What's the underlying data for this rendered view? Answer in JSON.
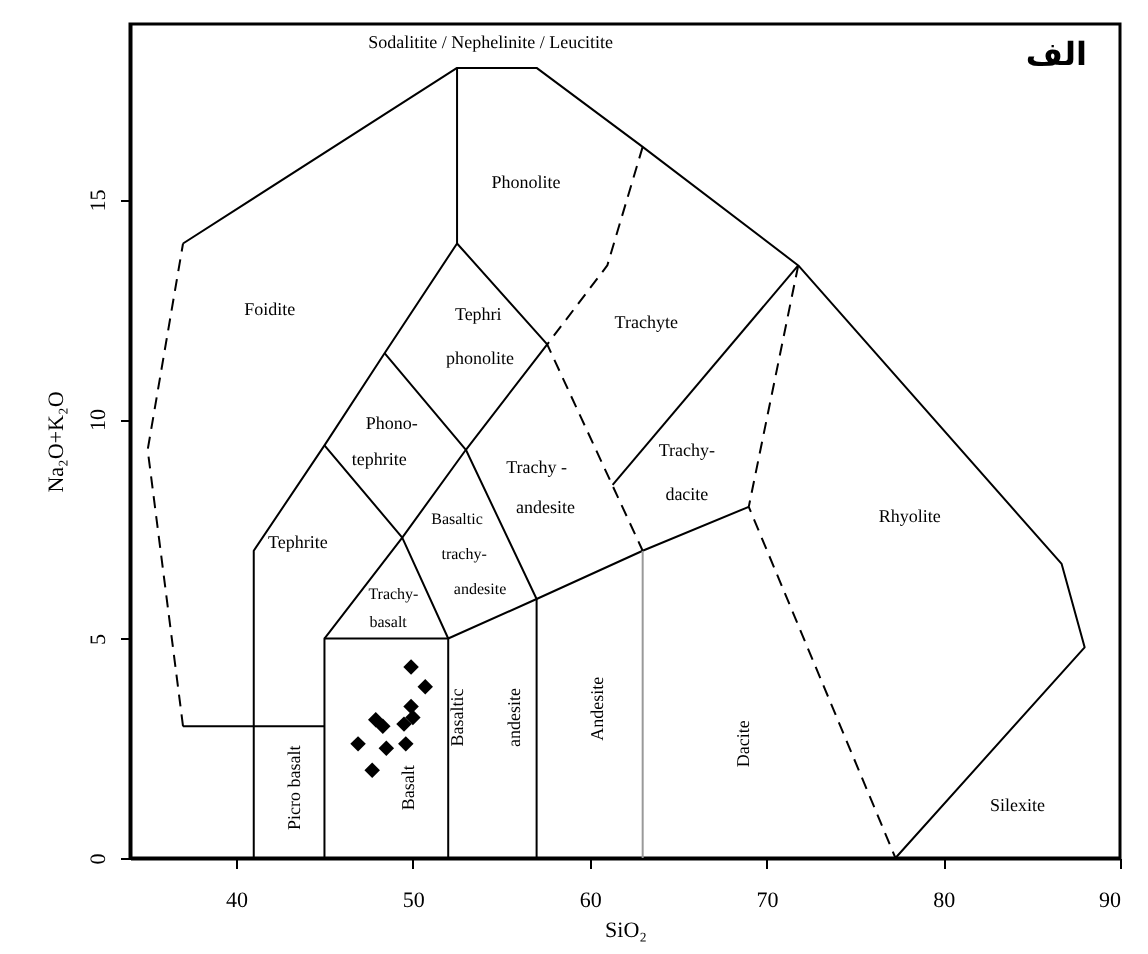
{
  "chart_data": {
    "type": "scatter",
    "xlabel": "SiO₂",
    "ylabel": "Na₂O+K₂O",
    "xlim": [
      34,
      90
    ],
    "ylim": [
      0,
      19
    ],
    "xticks": [
      40,
      50,
      60,
      70,
      80,
      90
    ],
    "yticks": [
      0,
      5,
      10,
      15
    ],
    "grid": false,
    "series": [
      {
        "color": "#000000",
        "marker": "diamond",
        "x": [
          49.9,
          50.7,
          49.9,
          50.0,
          47.9,
          48.3,
          49.5,
          49.6,
          48.5,
          46.9,
          47.7
        ],
        "values": [
          4.35,
          3.9,
          3.45,
          3.2,
          3.15,
          3.0,
          3.05,
          2.6,
          2.5,
          2.6,
          2.0
        ]
      },
      {
        "type": "line",
        "color": "#000000",
        "line_style": "solid",
        "x": [
          37,
          52.5,
          57,
          63,
          71.8,
          86.7,
          88,
          77.3
        ],
        "values": [
          14,
          18,
          18,
          16.2,
          13.5,
          6.7,
          4.8,
          0
        ]
      },
      {
        "type": "line",
        "color": "#000000",
        "line_style": "solid",
        "x": [
          37,
          45
        ],
        "values": [
          3,
          3
        ]
      },
      {
        "type": "line",
        "color": "#000000",
        "line_style": "solid",
        "x": [
          41,
          41,
          45,
          48.4,
          52.5,
          52.5
        ],
        "values": [
          0,
          7,
          9.4,
          11.5,
          14,
          18
        ]
      },
      {
        "type": "line",
        "color": "#000000",
        "line_style": "solid",
        "x": [
          45,
          45,
          52,
          52
        ],
        "values": [
          0,
          5,
          5,
          0
        ]
      },
      {
        "type": "line",
        "color": "#000000",
        "line_style": "solid",
        "x": [
          45,
          49.4,
          53,
          57.6,
          52.5
        ],
        "values": [
          5,
          7.3,
          9.3,
          11.7,
          14
        ]
      },
      {
        "type": "line",
        "color": "#000000",
        "line_style": "solid",
        "x": [
          45,
          49.4,
          52
        ],
        "values": [
          9.4,
          7.3,
          5
        ]
      },
      {
        "type": "line",
        "color": "#000000",
        "line_style": "solid",
        "x": [
          48.4,
          53,
          57,
          57
        ],
        "values": [
          11.5,
          9.3,
          5.9,
          0
        ]
      },
      {
        "type": "line",
        "color": "#000000",
        "line_style": "solid",
        "x": [
          52,
          57,
          63,
          69
        ],
        "values": [
          5,
          5.9,
          7,
          8
        ]
      },
      {
        "type": "line",
        "color": "#999999",
        "line_style": "solid",
        "x": [
          63,
          63
        ],
        "values": [
          0,
          7
        ]
      },
      {
        "type": "line",
        "color": "#000000",
        "line_style": "solid",
        "x": [
          61.3,
          71.8
        ],
        "values": [
          8.5,
          13.5
        ]
      },
      {
        "type": "line",
        "color": "#000000",
        "line_style": "dashed",
        "x": [
          37,
          35,
          37
        ],
        "values": [
          3,
          9.3,
          14
        ]
      },
      {
        "type": "line",
        "color": "#000000",
        "line_style": "dashed",
        "x": [
          63,
          61,
          57.6,
          63
        ],
        "values": [
          16.2,
          13.5,
          11.7,
          7
        ]
      },
      {
        "type": "line",
        "color": "#000000",
        "line_style": "dashed",
        "x": [
          71.8,
          69,
          77.3
        ],
        "values": [
          13.5,
          8,
          0
        ]
      }
    ],
    "annotations": [
      "Sodalitite / Nephelinite / Leucitite",
      "الف",
      "Phonolite",
      "Foidite",
      "Tephri",
      "phonolite",
      "Trachyte",
      "Phono-",
      "tephrite",
      "Trachy -",
      "andesite",
      "Trachy-",
      "dacite",
      "Rhyolite",
      "Tephrite",
      "Basaltic",
      "trachy-",
      "andesite",
      "Trachy-",
      "basalt",
      "Silexite",
      "Picro basalt",
      "Basalt",
      "Basaltic",
      "andesite",
      "Andesite",
      "Dacite"
    ]
  }
}
